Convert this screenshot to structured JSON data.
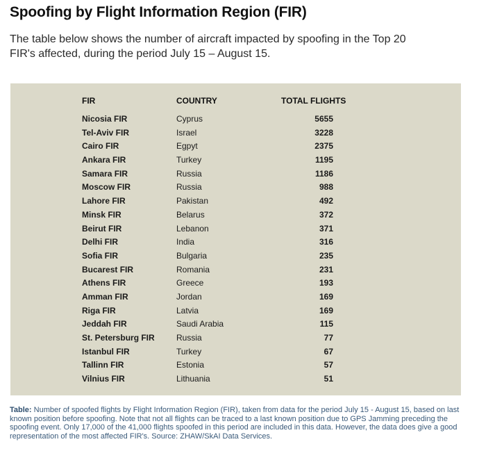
{
  "title": "Spoofing by Flight Information Region (FIR)",
  "intro": "The table below shows the number of aircraft impacted by spoofing in the Top 20 FIR's affected, during the period July 15 – August 15.",
  "table": {
    "headers": {
      "fir": "FIR",
      "country": "COUNTRY",
      "total": "TOTAL FLIGHTS"
    },
    "rows": [
      {
        "fir": "Nicosia FIR",
        "country": "Cyprus",
        "total": "5655"
      },
      {
        "fir": "Tel-Aviv FIR",
        "country": "Israel",
        "total": "3228"
      },
      {
        "fir": "Cairo FIR",
        "country": "Egpyt",
        "total": "2375"
      },
      {
        "fir": "Ankara FIR",
        "country": "Turkey",
        "total": "1195"
      },
      {
        "fir": "Samara FIR",
        "country": "Russia",
        "total": "1186"
      },
      {
        "fir": "Moscow FIR",
        "country": "Russia",
        "total": "988"
      },
      {
        "fir": "Lahore FIR",
        "country": "Pakistan",
        "total": "492"
      },
      {
        "fir": "Minsk FIR",
        "country": "Belarus",
        "total": "372"
      },
      {
        "fir": "Beirut FIR",
        "country": "Lebanon",
        "total": "371"
      },
      {
        "fir": "Delhi FIR",
        "country": "India",
        "total": "316"
      },
      {
        "fir": "Sofia FIR",
        "country": "Bulgaria",
        "total": "235"
      },
      {
        "fir": "Bucarest FIR",
        "country": "Romania",
        "total": "231"
      },
      {
        "fir": "Athens FIR",
        "country": "Greece",
        "total": "193"
      },
      {
        "fir": "Amman FIR",
        "country": "Jordan",
        "total": "169"
      },
      {
        "fir": "Riga FIR",
        "country": "Latvia",
        "total": "169"
      },
      {
        "fir": "Jeddah FIR",
        "country": "Saudi Arabia",
        "total": "115"
      },
      {
        "fir": "St. Petersburg FIR",
        "country": "Russia",
        "total": "77"
      },
      {
        "fir": "Istanbul FIR",
        "country": "Turkey",
        "total": "67"
      },
      {
        "fir": "Tallinn FIR",
        "country": "Estonia",
        "total": "57"
      },
      {
        "fir": "Vilnius FIR",
        "country": "Lithuania",
        "total": "51"
      }
    ]
  },
  "caption": {
    "label": "Table:",
    "text": " Number of spoofed flights by Flight Information Region (FIR), taken from data for the period July 15 - August 15, based on last known position before spoofing. Note that not all flights can be traced to a last known position due to GPS Jamming preceding the spoofing event. Only 17,000 of the 41,000 flights spoofed in this period are included in this data. However, the data does give a good representation of the most affected FIR's.  Source: ZHAW/SkAI Data Services."
  },
  "colors": {
    "panel": "#dbd9c9",
    "caption": "#3a5a7a"
  }
}
